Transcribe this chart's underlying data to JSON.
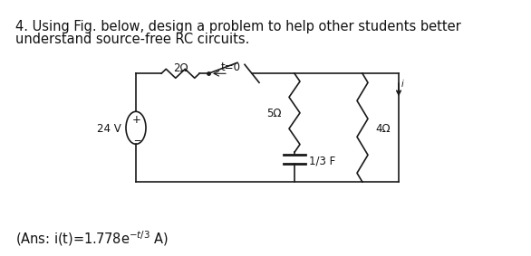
{
  "title_line1": "4. Using Fig. below, design a problem to help other students better",
  "title_line2": "understand source-free RC circuits.",
  "bg_color": "#ffffff",
  "line_color": "#1a1a1a",
  "font_size": 10.5,
  "circuit": {
    "voltage_source_label": "24 V",
    "plus_label": "+",
    "minus_label": "_",
    "resistor1_label": "2Ω",
    "switch_label": "t=0",
    "resistor2_label": "5Ω",
    "resistor3_label": "4Ω",
    "capacitor_label": "1/3 F",
    "current_label": "i"
  },
  "ans_main": "(Ans: i(t)=1.778e",
  "ans_exp": "-t/3",
  "ans_tail": " A)"
}
